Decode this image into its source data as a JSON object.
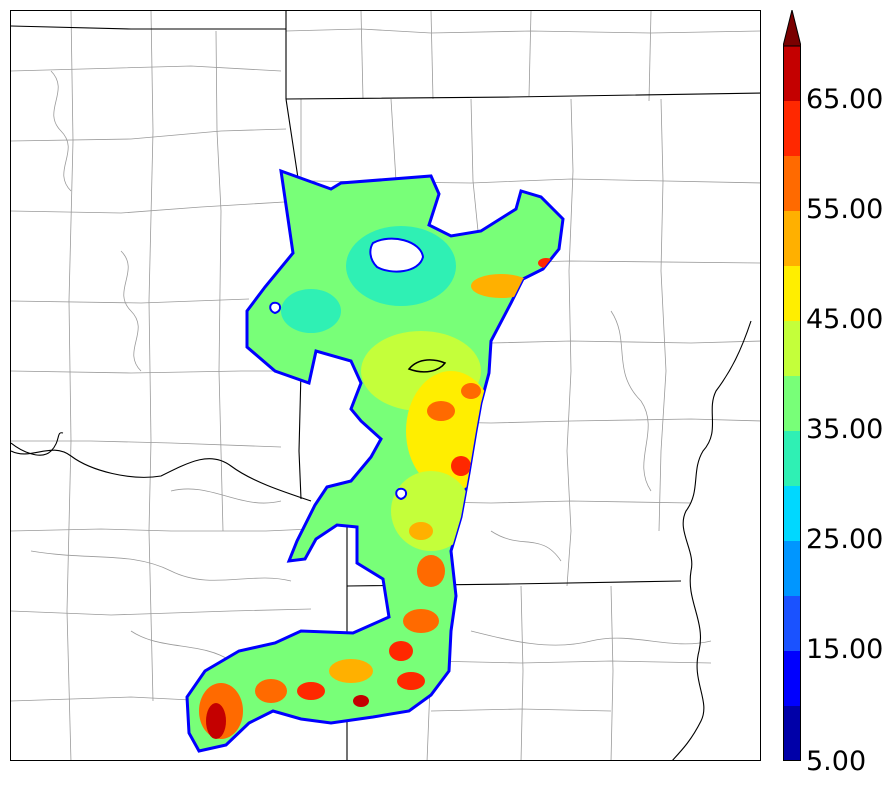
{
  "map": {
    "background": "#ffffff",
    "boundary_color": "#000000",
    "county_color": "#9a9a9a"
  },
  "colorbar": {
    "levels": [
      5,
      10,
      15,
      20,
      25,
      30,
      35,
      40,
      45,
      50,
      55,
      60,
      65,
      70
    ],
    "colors": [
      "#0000a8",
      "#0000ff",
      "#1a52ff",
      "#0096ff",
      "#00d8ff",
      "#2ff0b4",
      "#78ff78",
      "#c4ff3a",
      "#ffee00",
      "#ffb000",
      "#ff6a00",
      "#ff2800",
      "#c40000",
      "#7a0000"
    ],
    "extend": "max",
    "labels": [
      "5.00",
      "15.00",
      "25.00",
      "35.00",
      "45.00",
      "55.00",
      "65.00"
    ]
  }
}
